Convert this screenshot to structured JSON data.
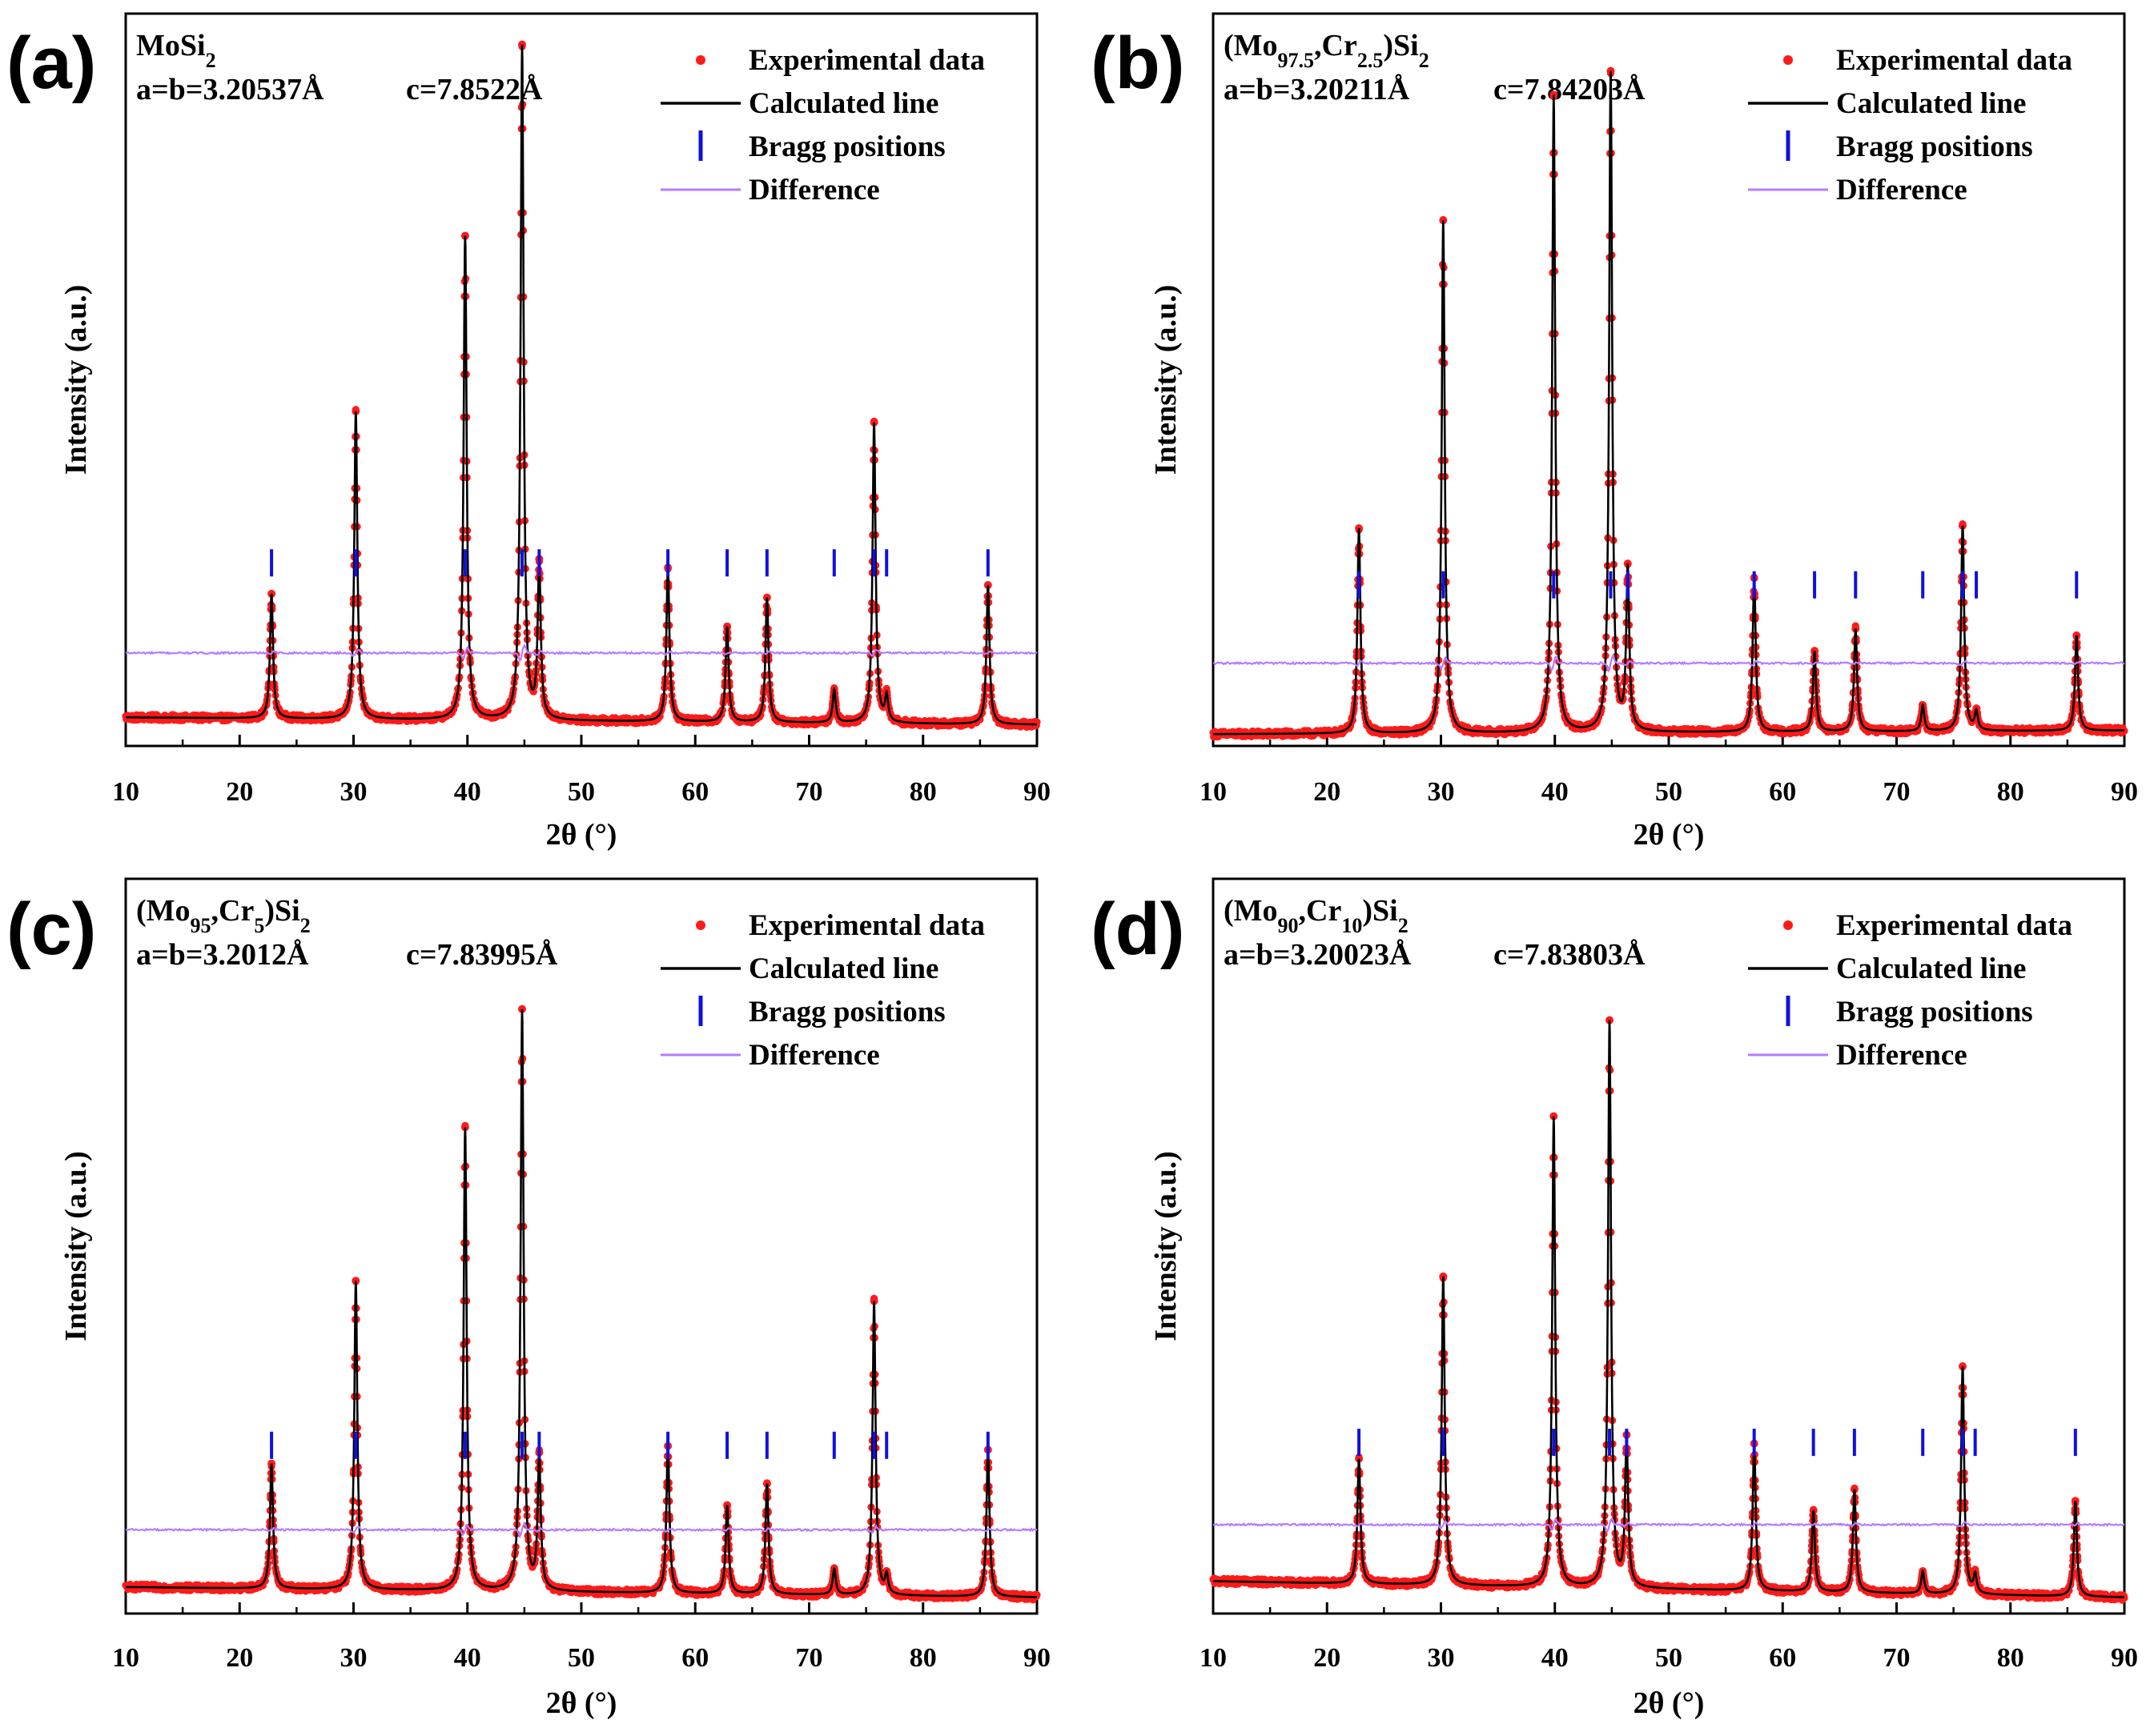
{
  "figure_title": "",
  "colors": {
    "experimental": "#ff1a1a",
    "calculated": "#000000",
    "bragg": "#1010e0",
    "difference": "#b57bff"
  },
  "legend": {
    "experimental": "Experimental data",
    "calculated": "Calculated line",
    "bragg": "Bragg positions",
    "difference": "Difference"
  },
  "chart_data": [
    {
      "panel": "(a)",
      "type": "line",
      "compound": {
        "base": "MoSi",
        "sub1": "2"
      },
      "lattice_a": "a=b=3.20537Å",
      "lattice_c": "c=7.8522Å",
      "xlabel": "2θ (°)",
      "ylabel": "Intensity (a.u.)",
      "xlim": [
        10,
        90
      ],
      "xticks": [
        "10",
        "20",
        "30",
        "40",
        "50",
        "60",
        "70",
        "80",
        "90"
      ],
      "ylim": [
        0,
        100
      ],
      "background": {
        "start": 3.9,
        "end": 2.9
      },
      "bragg_level": 25,
      "diff_level": 12.7,
      "peaks": [
        {
          "x": 22.8,
          "h": 17
        },
        {
          "x": 30.2,
          "h": 42
        },
        {
          "x": 39.8,
          "h": 66
        },
        {
          "x": 44.8,
          "h": 92
        },
        {
          "x": 46.3,
          "h": 21
        },
        {
          "x": 57.6,
          "h": 21
        },
        {
          "x": 62.8,
          "h": 13
        },
        {
          "x": 66.3,
          "h": 17
        },
        {
          "x": 72.2,
          "h": 4.5
        },
        {
          "x": 75.7,
          "h": 41
        },
        {
          "x": 76.8,
          "h": 3.5
        },
        {
          "x": 85.7,
          "h": 19
        }
      ],
      "bragg_positions": [
        22.8,
        30.2,
        39.8,
        44.8,
        46.3,
        57.6,
        62.8,
        66.3,
        72.2,
        75.7,
        76.8,
        85.7
      ],
      "legend_position": "top-right"
    },
    {
      "panel": "(b)",
      "type": "line",
      "compound": {
        "base": "(Mo",
        "sub1": "97.5",
        "mid": ",Cr",
        "sub2": "2.5",
        "tail": ")Si",
        "sub3": "2"
      },
      "lattice_a": "a=b=3.20211Å",
      "lattice_c": "c=7.84203Å",
      "xlabel": "2θ (°)",
      "ylabel": "Intensity (a.u.)",
      "xlim": [
        10,
        90
      ],
      "xticks": [
        "10",
        "20",
        "30",
        "40",
        "50",
        "60",
        "70",
        "80",
        "90"
      ],
      "ylim": [
        0,
        100
      ],
      "background": {
        "start": 1.6,
        "end": 2.1
      },
      "bragg_level": 22,
      "diff_level": 11.3,
      "peaks": [
        {
          "x": 22.8,
          "h": 28
        },
        {
          "x": 30.2,
          "h": 70
        },
        {
          "x": 39.9,
          "h": 87
        },
        {
          "x": 44.9,
          "h": 90
        },
        {
          "x": 46.4,
          "h": 22
        },
        {
          "x": 57.5,
          "h": 21
        },
        {
          "x": 62.8,
          "h": 11
        },
        {
          "x": 66.4,
          "h": 14
        },
        {
          "x": 72.3,
          "h": 3.5
        },
        {
          "x": 75.8,
          "h": 28
        },
        {
          "x": 77.0,
          "h": 2.5
        },
        {
          "x": 85.8,
          "h": 13
        }
      ],
      "bragg_positions": [
        22.8,
        30.2,
        39.9,
        44.9,
        46.4,
        57.5,
        62.8,
        66.4,
        72.3,
        75.8,
        77.0,
        85.8
      ],
      "legend_position": "top-right"
    },
    {
      "panel": "(c)",
      "type": "line",
      "compound": {
        "base": "(Mo",
        "sub1": "95",
        "mid": ",Cr",
        "sub2": "5",
        "tail": ")Si",
        "sub3": "2"
      },
      "lattice_a": "a=b=3.2012Å",
      "lattice_c": "c=7.83995Å",
      "xlabel": "2θ (°)",
      "ylabel": "Intensity (a.u.)",
      "xlim": [
        10,
        90
      ],
      "xticks": [
        "10",
        "20",
        "30",
        "40",
        "50",
        "60",
        "70",
        "80",
        "90"
      ],
      "ylim": [
        0,
        100
      ],
      "background": {
        "start": 3.6,
        "end": 2.2
      },
      "bragg_level": 22.9,
      "diff_level": 11.4,
      "peaks": [
        {
          "x": 22.8,
          "h": 17
        },
        {
          "x": 30.2,
          "h": 42
        },
        {
          "x": 39.8,
          "h": 63
        },
        {
          "x": 44.8,
          "h": 79
        },
        {
          "x": 46.3,
          "h": 18
        },
        {
          "x": 57.6,
          "h": 20
        },
        {
          "x": 62.8,
          "h": 12
        },
        {
          "x": 66.3,
          "h": 15
        },
        {
          "x": 72.2,
          "h": 3.5
        },
        {
          "x": 75.7,
          "h": 40
        },
        {
          "x": 76.8,
          "h": 2.5
        },
        {
          "x": 85.7,
          "h": 20
        }
      ],
      "bragg_positions": [
        22.8,
        30.2,
        39.8,
        44.8,
        46.3,
        57.6,
        62.8,
        66.3,
        72.2,
        75.7,
        76.8,
        85.7
      ],
      "legend_position": "top-right"
    },
    {
      "panel": "(d)",
      "type": "line",
      "compound": {
        "base": "(Mo",
        "sub1": "90",
        "mid": ",Cr",
        "sub2": "10",
        "tail": ")Si",
        "sub3": "2"
      },
      "lattice_a": "a=b=3.20023Å",
      "lattice_c": "c=7.83803Å",
      "xlabel": "2θ (°)",
      "ylabel": "Intensity (a.u.)",
      "xlim": [
        10,
        90
      ],
      "xticks": [
        "10",
        "20",
        "30",
        "40",
        "50",
        "60",
        "70",
        "80",
        "90"
      ],
      "ylim": [
        0,
        100
      ],
      "background": {
        "start": 4.4,
        "end": 2.2
      },
      "bragg_level": 23.3,
      "diff_level": 12.1,
      "peaks": [
        {
          "x": 22.8,
          "h": 17
        },
        {
          "x": 30.2,
          "h": 42
        },
        {
          "x": 39.9,
          "h": 64
        },
        {
          "x": 44.8,
          "h": 77
        },
        {
          "x": 46.3,
          "h": 20
        },
        {
          "x": 57.5,
          "h": 20
        },
        {
          "x": 62.7,
          "h": 11
        },
        {
          "x": 66.3,
          "h": 14
        },
        {
          "x": 72.3,
          "h": 3
        },
        {
          "x": 75.8,
          "h": 31
        },
        {
          "x": 76.9,
          "h": 2.5
        },
        {
          "x": 85.7,
          "h": 13
        }
      ],
      "bragg_positions": [
        22.8,
        30.2,
        39.9,
        44.8,
        46.3,
        57.5,
        62.7,
        66.3,
        72.3,
        75.8,
        76.9,
        85.7
      ],
      "legend_position": "top-right"
    }
  ]
}
